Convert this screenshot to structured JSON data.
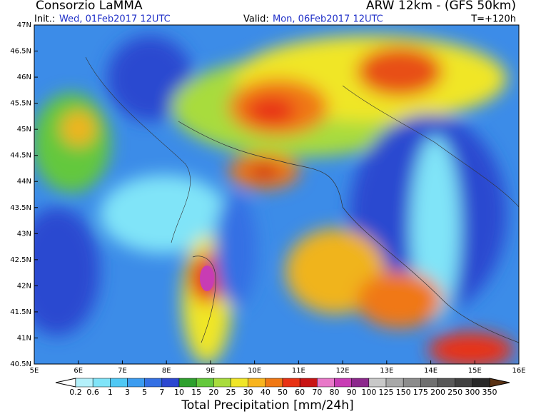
{
  "header": {
    "source": "Consorzio LaMMA",
    "model": "ARW 12km - (GFS 50km)",
    "init_label": "Init.:",
    "init": "Wed, 01Feb2017 12UTC",
    "valid_label": "Valid:",
    "valid": "Mon, 06Feb2017 12UTC",
    "lead": "T=+120h"
  },
  "map": {
    "lat_labels": [
      "47N",
      "46.5N",
      "46N",
      "45.5N",
      "45N",
      "44.5N",
      "44N",
      "43.5N",
      "43N",
      "42.5N",
      "42N",
      "41.5N",
      "41N",
      "40.5N"
    ],
    "lon_labels": [
      "5E",
      "6E",
      "7E",
      "8E",
      "9E",
      "10E",
      "11E",
      "12E",
      "13E",
      "14E",
      "15E",
      "16E"
    ]
  },
  "colorbar": {
    "title": "Total Precipitation [mm/24h]",
    "labels": [
      "0.2",
      "0.6",
      "1",
      "3",
      "5",
      "7",
      "10",
      "15",
      "20",
      "25",
      "30",
      "40",
      "50",
      "60",
      "70",
      "80",
      "90",
      "100",
      "125",
      "150",
      "175",
      "200",
      "250",
      "300",
      "350"
    ],
    "colors": [
      "#b4f0fa",
      "#80e4f8",
      "#50c8f4",
      "#3c9cf0",
      "#3470e4",
      "#2c48d0",
      "#2ea02e",
      "#64c83c",
      "#a8dc3c",
      "#f0e628",
      "#f8b41e",
      "#f07814",
      "#e83214",
      "#c81414",
      "#e878c8",
      "#c83cb4",
      "#8c288c",
      "#c8c8c8",
      "#a8a8a8",
      "#8c8c8c",
      "#707070",
      "#585858",
      "#404040",
      "#282828"
    ]
  }
}
